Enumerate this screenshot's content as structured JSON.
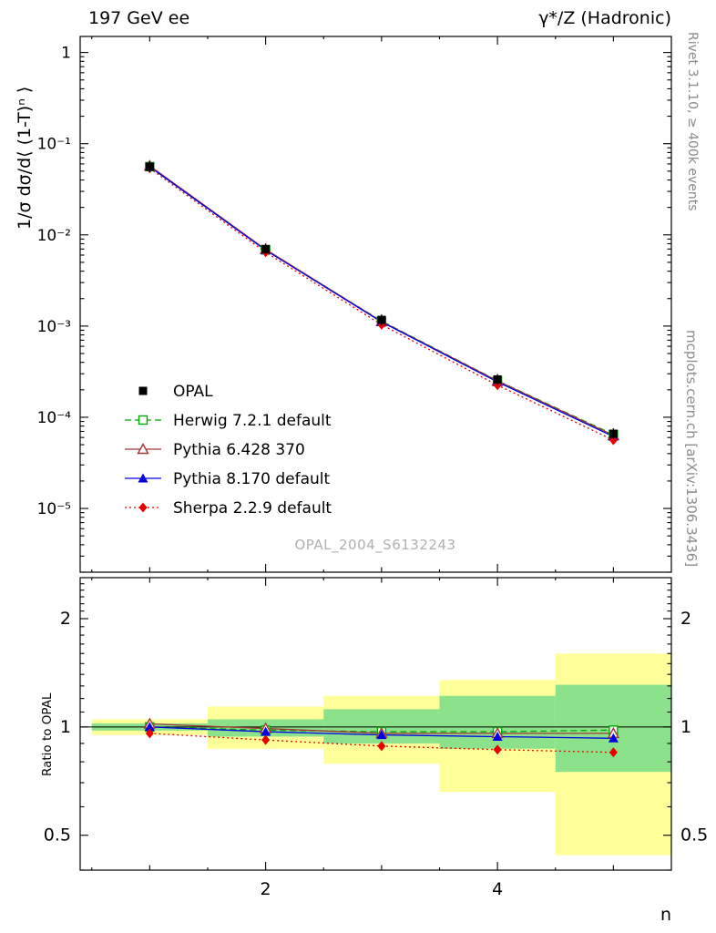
{
  "header": {
    "left": "197 GeV ee",
    "right": "γ*/Z (Hadronic)"
  },
  "axes": {
    "main_ylabel": "1/σ dσ/d⟨ (1-T)ⁿ ⟩",
    "ratio_ylabel": "Ratio to OPAL",
    "xlabel": "n"
  },
  "side_notes": {
    "top": "Rivet 3.1.10, ≥ 400k events",
    "bottom": "mcplots.cern.ch [arXiv:1306.3436]"
  },
  "watermark": "OPAL_2004_S6132243",
  "chart_data": {
    "type": "line",
    "x": [
      1,
      2,
      3,
      4,
      5
    ],
    "xlim": [
      0.4,
      5.5
    ],
    "xticks": {
      "major": [
        2,
        4
      ],
      "minor": [
        1,
        3,
        5
      ],
      "tiny": [
        0.5,
        1.5,
        2.5,
        3.5,
        4.5
      ],
      "labels": [
        {
          "v": 2,
          "t": "2"
        },
        {
          "v": 4,
          "t": "4"
        }
      ]
    },
    "main_panel": {
      "yscale": "log",
      "ylim": [
        2e-06,
        1.5
      ],
      "yticks": [
        {
          "v": 1,
          "t": "1"
        },
        {
          "v": 0.1,
          "t": "10⁻¹"
        },
        {
          "v": 0.01,
          "t": "10⁻²"
        },
        {
          "v": 0.001,
          "t": "10⁻³"
        },
        {
          "v": 0.0001,
          "t": "10⁻⁴"
        },
        {
          "v": 1e-05,
          "t": "10⁻⁵"
        }
      ]
    },
    "ratio_panel": {
      "yscale": "log",
      "ylim": [
        0.4,
        2.6
      ],
      "reference": 1,
      "yticks": [
        {
          "v": 2,
          "t": "2"
        },
        {
          "v": 1,
          "t": "1"
        },
        {
          "v": 0.5,
          "t": "0.5"
        }
      ],
      "band_colors": {
        "outer": "#ffff99",
        "inner": "#8be28b"
      },
      "bands": [
        {
          "x": [
            0.5,
            1.5
          ],
          "yellow": [
            0.95,
            1.05
          ],
          "green": [
            0.977,
            1.023
          ]
        },
        {
          "x": [
            1.5,
            2.5
          ],
          "yellow": [
            0.87,
            1.14
          ],
          "green": [
            0.94,
            1.05
          ]
        },
        {
          "x": [
            2.5,
            3.5
          ],
          "yellow": [
            0.79,
            1.22
          ],
          "green": [
            0.9,
            1.12
          ]
        },
        {
          "x": [
            3.5,
            4.5
          ],
          "yellow": [
            0.66,
            1.35
          ],
          "green": [
            0.87,
            1.22
          ]
        },
        {
          "x": [
            4.5,
            5.5
          ],
          "yellow": [
            0.44,
            1.6
          ],
          "green": [
            0.75,
            1.31
          ]
        }
      ]
    },
    "series": [
      {
        "name": "OPAL",
        "role": "reference-data",
        "color": "#000000",
        "marker": "square-filled",
        "line": "none",
        "values": [
          0.056,
          0.007,
          0.00117,
          0.00026,
          6.6e-05
        ]
      },
      {
        "name": "Herwig 7.2.1 default",
        "role": "mc",
        "color": "#00aa00",
        "marker": "square-open",
        "line": "dashed",
        "values": [
          0.056,
          0.00686,
          0.001135,
          0.000252,
          6.47e-05
        ],
        "ratio": [
          1.0,
          0.98,
          0.97,
          0.97,
          0.98
        ]
      },
      {
        "name": "Pythia 6.428 370",
        "role": "mc",
        "color": "#a43535",
        "marker": "triangle-open",
        "line": "solid",
        "values": [
          0.0571,
          0.00693,
          0.001123,
          0.00025,
          6.34e-05
        ],
        "ratio": [
          1.02,
          0.99,
          0.96,
          0.96,
          0.96
        ]
      },
      {
        "name": "Pythia 8.170 default",
        "role": "mc",
        "color": "#0000e0",
        "marker": "triangle-filled",
        "line": "solid",
        "values": [
          0.056,
          0.00679,
          0.001112,
          0.000244,
          6.14e-05
        ],
        "ratio": [
          1.0,
          0.97,
          0.95,
          0.94,
          0.93
        ]
      },
      {
        "name": "Sherpa 2.2.9 default",
        "role": "mc",
        "color": "#e60000",
        "marker": "diamond-filled",
        "line": "dotted",
        "values": [
          0.0538,
          0.00644,
          0.001036,
          0.000225,
          5.61e-05
        ],
        "ratio": [
          0.96,
          0.92,
          0.885,
          0.865,
          0.85
        ]
      }
    ]
  }
}
